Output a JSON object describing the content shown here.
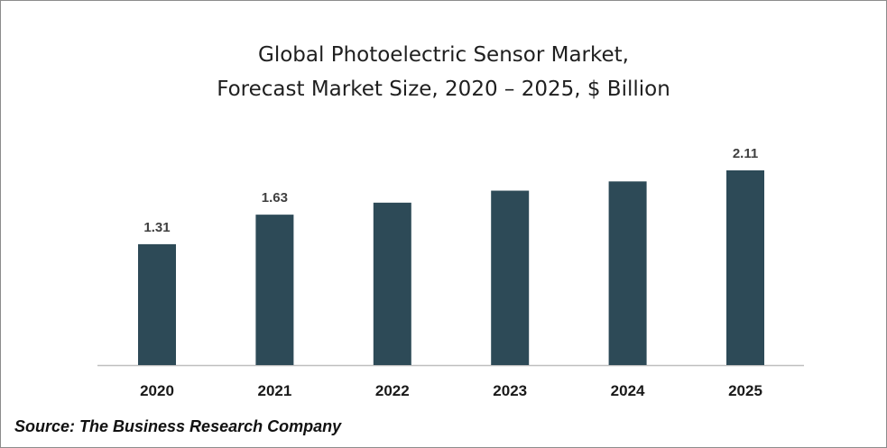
{
  "chart_data": {
    "type": "bar",
    "title_lines": [
      "Global Photoelectric Sensor Market,",
      "Forecast Market Size, 2020 – 2025, $ Billion"
    ],
    "categories": [
      "2020",
      "2021",
      "2022",
      "2023",
      "2024",
      "2025"
    ],
    "values": [
      1.31,
      1.63,
      1.76,
      1.89,
      1.99,
      2.11
    ],
    "data_labels": [
      "1.31",
      "1.63",
      "",
      "",
      "",
      "2.11"
    ],
    "xlabel": "",
    "ylabel": "",
    "ylim": [
      0,
      2.11
    ],
    "grid": false,
    "legend": "none",
    "bar_color": "#2d4a57"
  },
  "source": "Source: The Business Research Company"
}
